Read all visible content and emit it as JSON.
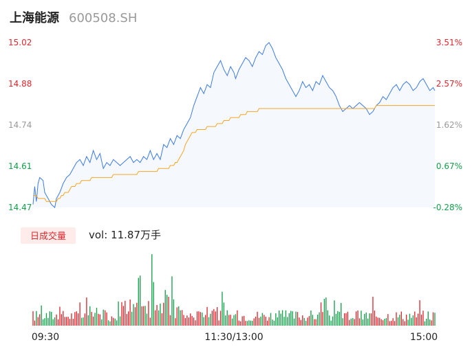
{
  "header": {
    "name": "上海能源",
    "code": "600508.SH"
  },
  "colors": {
    "up": "#e0262c",
    "down": "#12a04a",
    "neutral": "#999999",
    "price_line": "#3c7ae6",
    "avg_line": "#f5a623",
    "area_fill": "#f5f8fd",
    "badge_bg": "#fdecea"
  },
  "volume_panel": {
    "badge": "日成交量",
    "vol_text": "vol: 11.87万手"
  },
  "chart_data": {
    "type": "line",
    "title": "",
    "price_axis": {
      "ticks": [
        "15.02",
        "14.88",
        "14.74",
        "14.61",
        "14.47"
      ],
      "tick_colors": [
        "up",
        "up",
        "neutral",
        "down",
        "down"
      ],
      "ylim": [
        14.47,
        15.02
      ]
    },
    "pct_axis": {
      "ticks": [
        "3.51%",
        "2.57%",
        "1.62%",
        "0.67%",
        "-0.28%"
      ],
      "tick_colors": [
        "up",
        "up",
        "neutral",
        "down",
        "down"
      ]
    },
    "time_ticks": [
      "09:30",
      "11:30/13:00",
      "15:00"
    ],
    "minutes_total": 241,
    "price_keyframes": [
      [
        0,
        14.48
      ],
      [
        1,
        14.54
      ],
      [
        2,
        14.49
      ],
      [
        3,
        14.55
      ],
      [
        4,
        14.57
      ],
      [
        6,
        14.56
      ],
      [
        7,
        14.52
      ],
      [
        9,
        14.5
      ],
      [
        11,
        14.48
      ],
      [
        13,
        14.47
      ],
      [
        14,
        14.5
      ],
      [
        16,
        14.52
      ],
      [
        18,
        14.55
      ],
      [
        20,
        14.57
      ],
      [
        22,
        14.58
      ],
      [
        24,
        14.6
      ],
      [
        26,
        14.62
      ],
      [
        28,
        14.63
      ],
      [
        30,
        14.61
      ],
      [
        32,
        14.64
      ],
      [
        34,
        14.62
      ],
      [
        36,
        14.66
      ],
      [
        38,
        14.63
      ],
      [
        40,
        14.65
      ],
      [
        42,
        14.6
      ],
      [
        44,
        14.62
      ],
      [
        46,
        14.61
      ],
      [
        48,
        14.63
      ],
      [
        50,
        14.62
      ],
      [
        52,
        14.61
      ],
      [
        54,
        14.62
      ],
      [
        56,
        14.63
      ],
      [
        58,
        14.64
      ],
      [
        60,
        14.62
      ],
      [
        62,
        14.63
      ],
      [
        64,
        14.62
      ],
      [
        66,
        14.64
      ],
      [
        68,
        14.63
      ],
      [
        70,
        14.66
      ],
      [
        72,
        14.63
      ],
      [
        74,
        14.65
      ],
      [
        76,
        14.63
      ],
      [
        78,
        14.68
      ],
      [
        80,
        14.67
      ],
      [
        82,
        14.7
      ],
      [
        84,
        14.68
      ],
      [
        86,
        14.71
      ],
      [
        88,
        14.7
      ],
      [
        90,
        14.73
      ],
      [
        92,
        14.75
      ],
      [
        94,
        14.77
      ],
      [
        96,
        14.81
      ],
      [
        98,
        14.84
      ],
      [
        100,
        14.87
      ],
      [
        102,
        14.85
      ],
      [
        104,
        14.88
      ],
      [
        106,
        14.87
      ],
      [
        108,
        14.92
      ],
      [
        110,
        14.94
      ],
      [
        112,
        14.96
      ],
      [
        114,
        14.93
      ],
      [
        116,
        14.91
      ],
      [
        118,
        14.94
      ],
      [
        120,
        14.92
      ],
      [
        121,
        14.9
      ],
      [
        123,
        14.93
      ],
      [
        125,
        14.95
      ],
      [
        127,
        14.97
      ],
      [
        129,
        14.96
      ],
      [
        131,
        14.94
      ],
      [
        133,
        14.97
      ],
      [
        135,
        14.99
      ],
      [
        137,
        14.98
      ],
      [
        139,
        15.01
      ],
      [
        141,
        15.02
      ],
      [
        143,
        15.0
      ],
      [
        145,
        14.97
      ],
      [
        147,
        14.95
      ],
      [
        149,
        14.93
      ],
      [
        151,
        14.9
      ],
      [
        153,
        14.88
      ],
      [
        155,
        14.86
      ],
      [
        157,
        14.84
      ],
      [
        159,
        14.86
      ],
      [
        161,
        14.89
      ],
      [
        163,
        14.87
      ],
      [
        165,
        14.88
      ],
      [
        167,
        14.86
      ],
      [
        169,
        14.89
      ],
      [
        171,
        14.88
      ],
      [
        173,
        14.91
      ],
      [
        175,
        14.89
      ],
      [
        177,
        14.87
      ],
      [
        179,
        14.86
      ],
      [
        181,
        14.84
      ],
      [
        183,
        14.81
      ],
      [
        185,
        14.79
      ],
      [
        187,
        14.8
      ],
      [
        189,
        14.81
      ],
      [
        191,
        14.8
      ],
      [
        193,
        14.81
      ],
      [
        195,
        14.82
      ],
      [
        197,
        14.81
      ],
      [
        199,
        14.8
      ],
      [
        201,
        14.78
      ],
      [
        203,
        14.79
      ],
      [
        205,
        14.81
      ],
      [
        207,
        14.82
      ],
      [
        209,
        14.84
      ],
      [
        211,
        14.83
      ],
      [
        213,
        14.85
      ],
      [
        215,
        14.87
      ],
      [
        217,
        14.88
      ],
      [
        219,
        14.86
      ],
      [
        221,
        14.88
      ],
      [
        223,
        14.89
      ],
      [
        225,
        14.88
      ],
      [
        227,
        14.86
      ],
      [
        229,
        14.87
      ],
      [
        231,
        14.89
      ],
      [
        233,
        14.9
      ],
      [
        235,
        14.88
      ],
      [
        237,
        14.86
      ],
      [
        239,
        14.87
      ],
      [
        240,
        14.86
      ]
    ],
    "avg_keyframes": [
      [
        0,
        14.51
      ],
      [
        10,
        14.49
      ],
      [
        14,
        14.49
      ],
      [
        18,
        14.51
      ],
      [
        24,
        14.54
      ],
      [
        30,
        14.56
      ],
      [
        40,
        14.57
      ],
      [
        56,
        14.58
      ],
      [
        70,
        14.59
      ],
      [
        80,
        14.6
      ],
      [
        86,
        14.62
      ],
      [
        88,
        14.64
      ],
      [
        90,
        14.66
      ],
      [
        92,
        14.69
      ],
      [
        94,
        14.71
      ],
      [
        96,
        14.72
      ],
      [
        100,
        14.73
      ],
      [
        108,
        14.74
      ],
      [
        112,
        14.75
      ],
      [
        116,
        14.76
      ],
      [
        120,
        14.77
      ],
      [
        126,
        14.78
      ],
      [
        130,
        14.79
      ],
      [
        140,
        14.8
      ],
      [
        160,
        14.8
      ],
      [
        180,
        14.8
      ],
      [
        190,
        14.8
      ],
      [
        200,
        14.8
      ],
      [
        210,
        14.81
      ],
      [
        240,
        14.81
      ]
    ],
    "volume_peak_minute": 71,
    "volume_peak_value": 100
  }
}
